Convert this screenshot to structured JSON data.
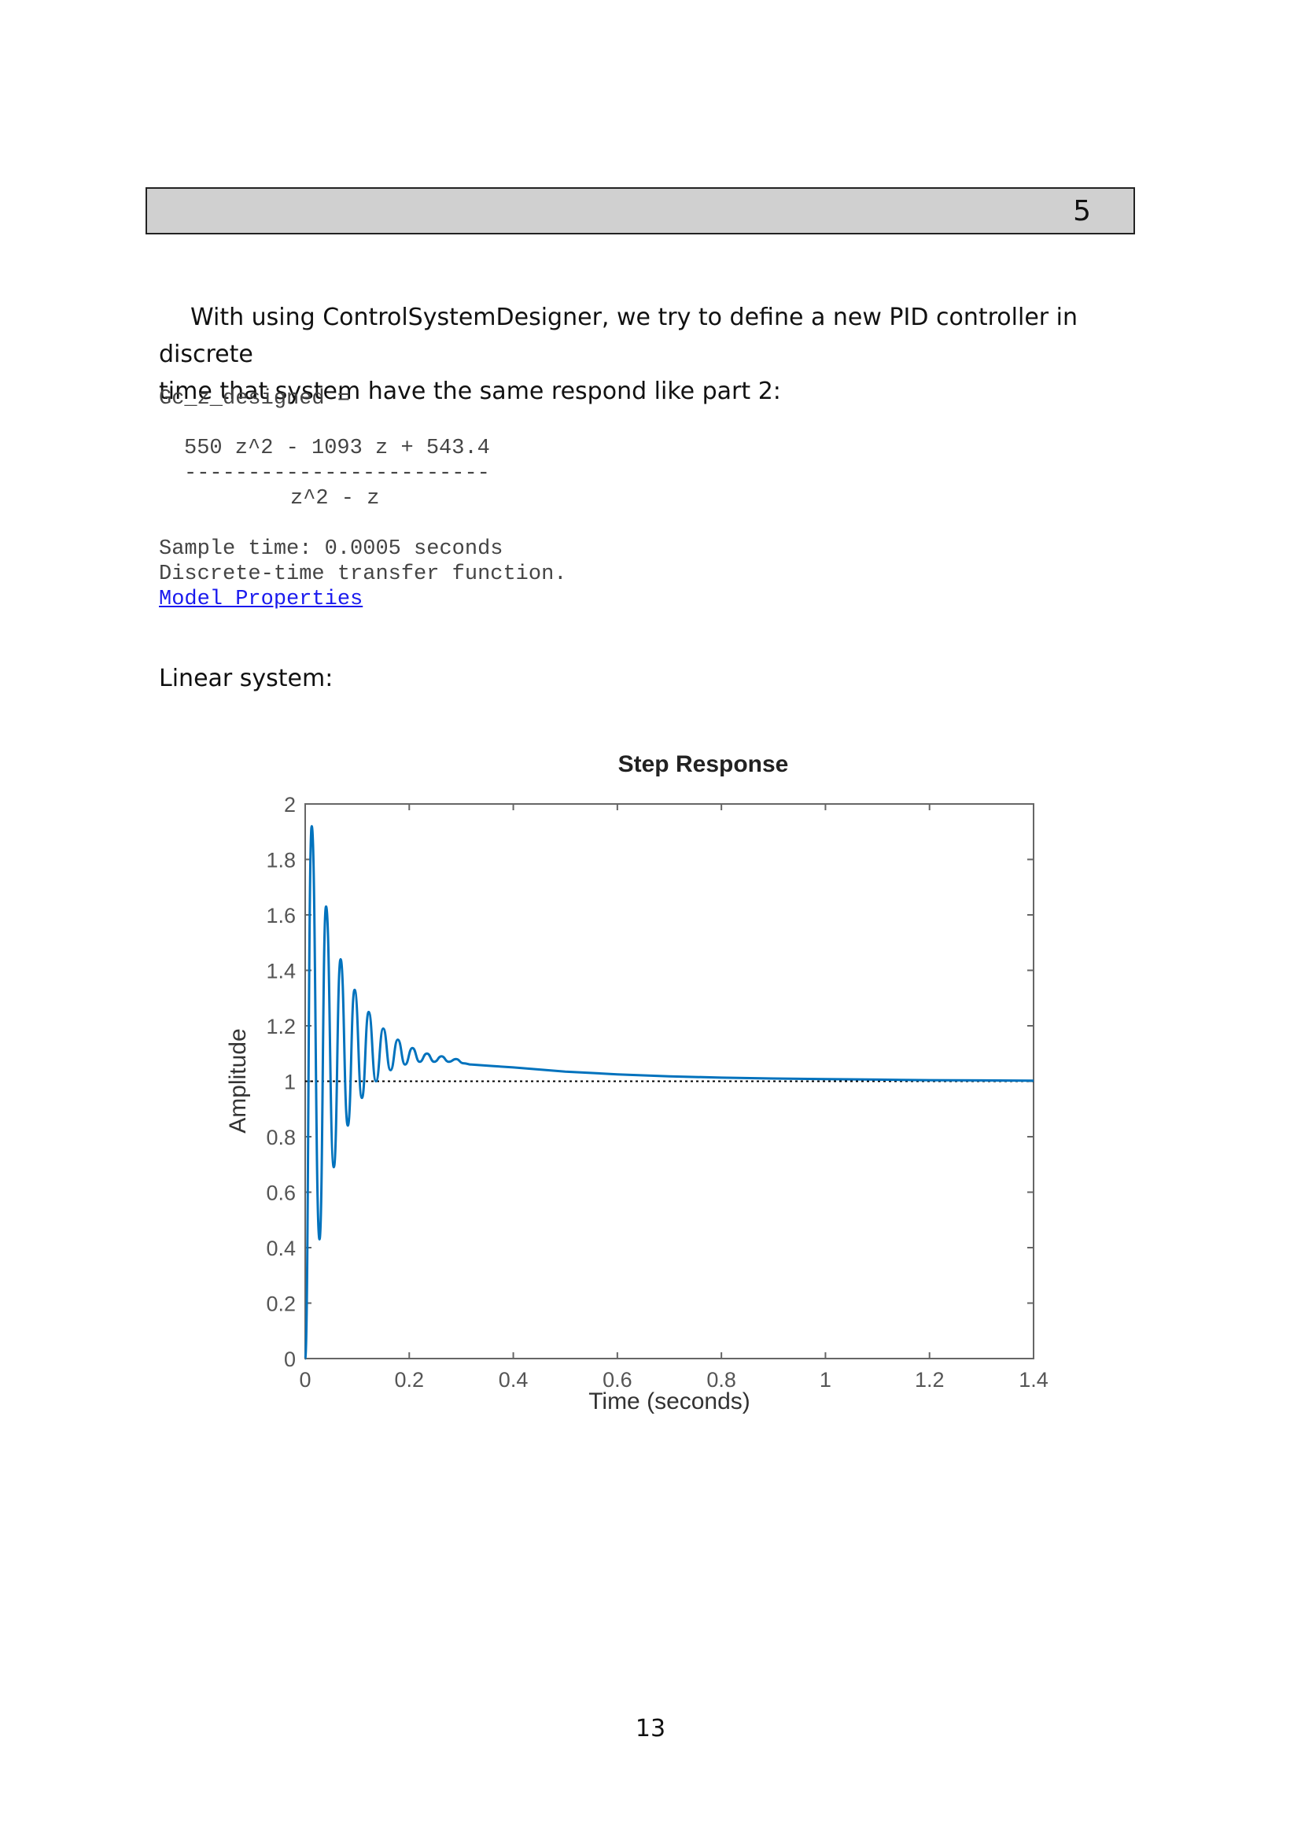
{
  "header": {
    "section_number": "5"
  },
  "intro": {
    "line1": "With using ControlSystemDesigner, we try to define a new PID controller in discrete",
    "line2": "time that system have the same respond like part 2:"
  },
  "code": {
    "var_line": "Gc_z_designed =",
    "numerator": "550 z^2 - 1093 z + 543.4",
    "dash_line": "------------------------",
    "denominator": "z^2 - z",
    "sample_time": "Sample time: 0.0005 seconds",
    "description": "Discrete-time transfer function.",
    "link": "Model Properties"
  },
  "section_label": "Linear system:",
  "chart_data": {
    "type": "line",
    "title": "Step Response",
    "xlabel": "Time (seconds)",
    "ylabel": "Amplitude",
    "xlim": [
      0,
      1.4
    ],
    "ylim": [
      0,
      2
    ],
    "x_ticks": [
      "0",
      "0.2",
      "0.4",
      "0.6",
      "0.8",
      "1",
      "1.2",
      "1.4"
    ],
    "y_ticks": [
      "0",
      "0.2",
      "0.4",
      "0.6",
      "0.8",
      "1",
      "1.2",
      "1.4",
      "1.6",
      "1.8",
      "2"
    ],
    "reference_line": 1,
    "series": [
      {
        "name": "Step response",
        "color": "#0072bd",
        "x": [
          0,
          0.0125,
          0.0275,
          0.04,
          0.055,
          0.068,
          0.082,
          0.095,
          0.109,
          0.122,
          0.136,
          0.15,
          0.164,
          0.178,
          0.192,
          0.206,
          0.22,
          0.234,
          0.248,
          0.262,
          0.276,
          0.29,
          0.304,
          0.32,
          0.36,
          0.4,
          0.5,
          0.6,
          0.7,
          0.8,
          0.9,
          1.0,
          1.1,
          1.2,
          1.3,
          1.4
        ],
        "y": [
          0,
          1.92,
          0.43,
          1.63,
          0.69,
          1.44,
          0.84,
          1.33,
          0.94,
          1.25,
          1.0,
          1.19,
          1.04,
          1.15,
          1.06,
          1.12,
          1.07,
          1.1,
          1.07,
          1.09,
          1.07,
          1.08,
          1.065,
          1.06,
          1.055,
          1.05,
          1.035,
          1.025,
          1.018,
          1.013,
          1.01,
          1.008,
          1.006,
          1.004,
          1.003,
          1.002
        ]
      }
    ]
  },
  "footer": {
    "page_number": "13"
  }
}
